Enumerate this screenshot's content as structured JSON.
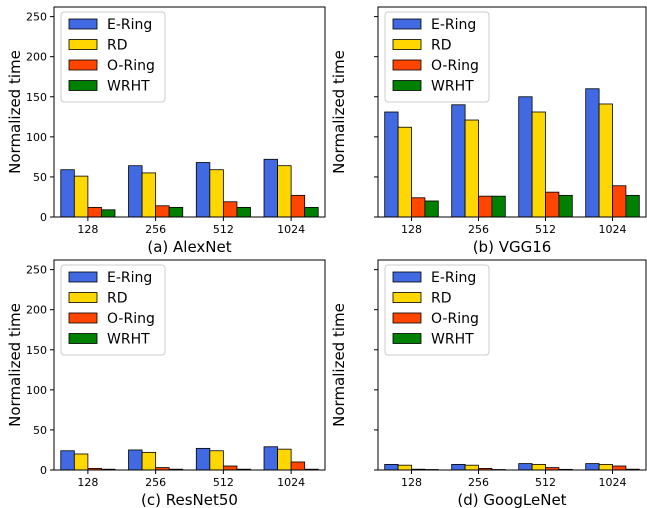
{
  "figure": {
    "legend_labels": [
      "E-Ring",
      "RD",
      "O-Ring",
      "WRHT"
    ],
    "colors": [
      "#4169e1",
      "#ffd700",
      "#ff4500",
      "#008000"
    ],
    "shared_y_axis": true
  },
  "chart_data": [
    {
      "type": "bar",
      "caption": "(a) AlexNet",
      "ylabel": "Normalized time",
      "categories": [
        "128",
        "256",
        "512",
        "1024"
      ],
      "ylim": [
        0,
        262
      ],
      "yticks": [
        0,
        50,
        100,
        150,
        200,
        250
      ],
      "series": [
        {
          "name": "E-Ring",
          "values": [
            59,
            64,
            68,
            72
          ]
        },
        {
          "name": "RD",
          "values": [
            51,
            55,
            59,
            64
          ]
        },
        {
          "name": "O-Ring",
          "values": [
            12,
            14,
            19,
            27
          ]
        },
        {
          "name": "WRHT",
          "values": [
            9,
            12,
            12,
            12
          ]
        }
      ],
      "legend_position": "upper-left"
    },
    {
      "type": "bar",
      "caption": "(b) VGG16",
      "ylabel": "Normalized time",
      "categories": [
        "128",
        "256",
        "512",
        "1024"
      ],
      "ylim": [
        0,
        262
      ],
      "yticks": [
        0,
        50,
        100,
        150,
        200,
        250
      ],
      "series": [
        {
          "name": "E-Ring",
          "values": [
            131,
            140,
            150,
            160
          ]
        },
        {
          "name": "RD",
          "values": [
            112,
            121,
            131,
            141
          ]
        },
        {
          "name": "O-Ring",
          "values": [
            24,
            26,
            31,
            39
          ]
        },
        {
          "name": "WRHT",
          "values": [
            20,
            26,
            27,
            27
          ]
        }
      ],
      "legend_position": "upper-left"
    },
    {
      "type": "bar",
      "caption": "(c) ResNet50",
      "ylabel": "Normalized time",
      "categories": [
        "128",
        "256",
        "512",
        "1024"
      ],
      "ylim": [
        0,
        262
      ],
      "yticks": [
        0,
        50,
        100,
        150,
        200,
        250
      ],
      "series": [
        {
          "name": "E-Ring",
          "values": [
            24,
            25,
            27,
            29
          ]
        },
        {
          "name": "RD",
          "values": [
            20,
            22,
            24,
            26
          ]
        },
        {
          "name": "O-Ring",
          "values": [
            2,
            3,
            5,
            10
          ]
        },
        {
          "name": "WRHT",
          "values": [
            1,
            1,
            1,
            1
          ]
        }
      ],
      "legend_position": "upper-left"
    },
    {
      "type": "bar",
      "caption": "(d) GoogLeNet",
      "ylabel": "Normalized time",
      "categories": [
        "128",
        "256",
        "512",
        "1024"
      ],
      "ylim": [
        0,
        262
      ],
      "yticks": [
        0,
        50,
        100,
        150,
        200,
        250
      ],
      "series": [
        {
          "name": "E-Ring",
          "values": [
            7,
            7,
            8,
            8
          ]
        },
        {
          "name": "RD",
          "values": [
            6,
            6,
            7,
            7
          ]
        },
        {
          "name": "O-Ring",
          "values": [
            1,
            2,
            3,
            5
          ]
        },
        {
          "name": "WRHT",
          "values": [
            0.6,
            0.6,
            0.8,
            1
          ]
        }
      ],
      "legend_position": "upper-left"
    }
  ]
}
